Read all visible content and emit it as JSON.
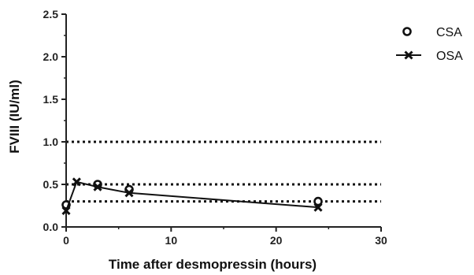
{
  "chart_data": {
    "type": "line",
    "xlabel": "Time after desmopressin (hours)",
    "ylabel": "FVIII (IU/ml)",
    "xlim": [
      0,
      30
    ],
    "ylim": [
      0,
      2.5
    ],
    "x_ticks": [
      "0",
      "10",
      "20",
      "30"
    ],
    "y_ticks": [
      "0.0",
      "0.5",
      "1.0",
      "1.5",
      "2.0",
      "2.5"
    ],
    "reference_lines": [
      0.3,
      0.5,
      1.0
    ],
    "grid": false,
    "legend": "right",
    "series": [
      {
        "name": "CSA",
        "marker": "open-circle",
        "connected": false,
        "points": [
          {
            "x": 0,
            "y": 0.26
          },
          {
            "x": 3,
            "y": 0.5
          },
          {
            "x": 6,
            "y": 0.44
          },
          {
            "x": 24,
            "y": 0.3
          }
        ]
      },
      {
        "name": "OSA",
        "marker": "cross",
        "connected": true,
        "points": [
          {
            "x": 0,
            "y": 0.19
          },
          {
            "x": 1,
            "y": 0.53
          },
          {
            "x": 3,
            "y": 0.47
          },
          {
            "x": 6,
            "y": 0.4
          },
          {
            "x": 24,
            "y": 0.23
          }
        ]
      }
    ]
  }
}
